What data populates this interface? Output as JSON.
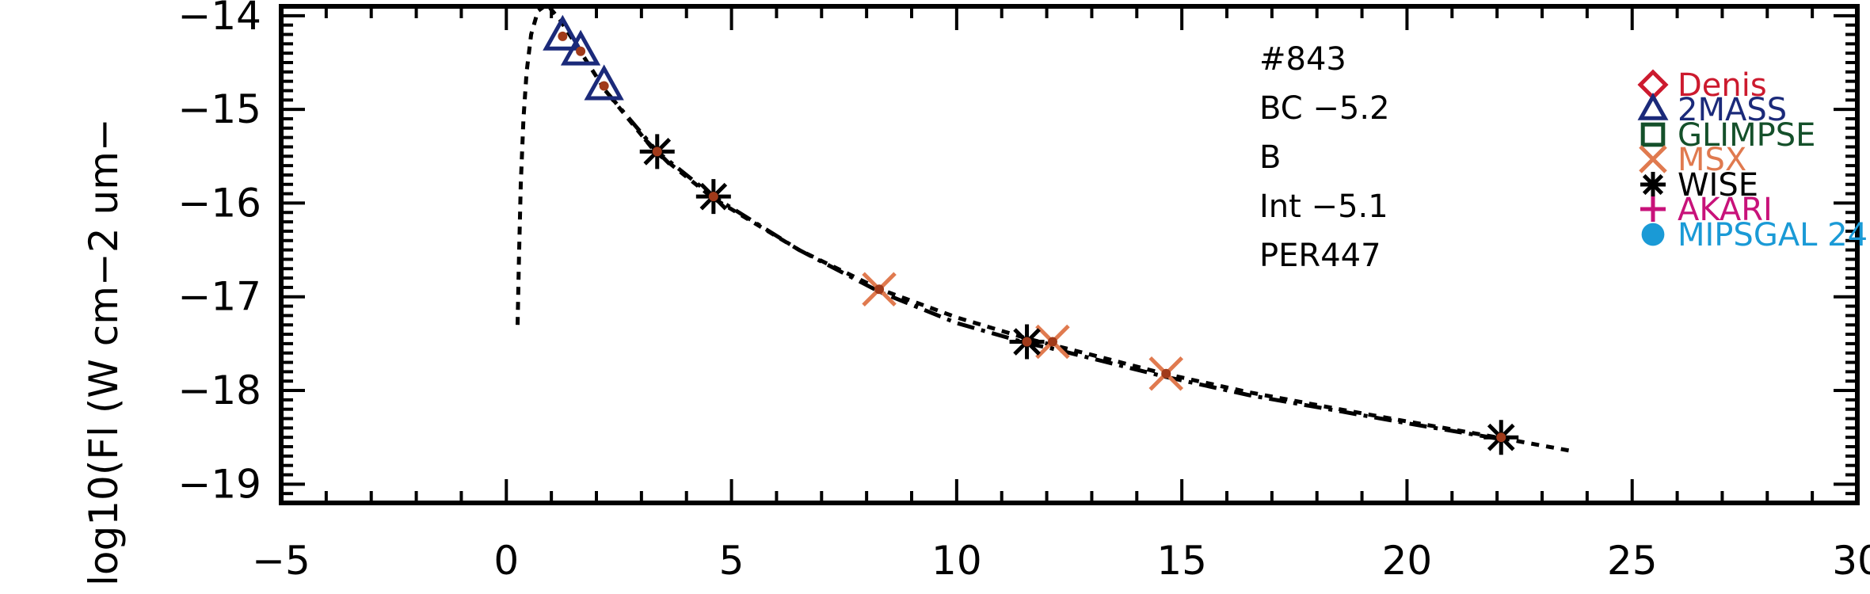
{
  "chart_data": {
    "type": "scatter",
    "title": "",
    "xlabel": "",
    "ylabel": "log10(Fl (W cm−2 um−",
    "xlim": [
      -5,
      30
    ],
    "ylim": [
      -19.2,
      -13.9
    ],
    "x_ticks": [
      -5,
      0,
      5,
      10,
      15,
      20,
      25,
      30
    ],
    "x_tick_labels": [
      "−5",
      "0",
      "5",
      "10",
      "15",
      "20",
      "25",
      "30"
    ],
    "y_ticks": [
      -19,
      -18,
      -17,
      -16,
      -15,
      -14
    ],
    "y_tick_labels": [
      "−19",
      "−18",
      "−17",
      "−16",
      "−15",
      "−14"
    ],
    "annotations": [
      "#843",
      "BC  −5.2",
      "B",
      "Int  −5.1",
      "PER447"
    ],
    "legend": [
      {
        "name": "Denis",
        "marker": "diamond",
        "color": "#cc1a2e"
      },
      {
        "name": "2MASS",
        "marker": "triangle",
        "color": "#1b2a7a"
      },
      {
        "name": "GLIMPSE",
        "marker": "square",
        "color": "#14502a"
      },
      {
        "name": "MSX",
        "marker": "x",
        "color": "#e07a4f"
      },
      {
        "name": "WISE",
        "marker": "asterisk",
        "color": "#000000"
      },
      {
        "name": "AKARI",
        "marker": "plus",
        "color": "#c8127a"
      },
      {
        "name": "MIPSGAL 24",
        "marker": "circle",
        "color": "#1a9ad6"
      }
    ],
    "series": [
      {
        "name": "2MASS",
        "marker": "triangle",
        "color": "#1b2a7a",
        "x": [
          1.25,
          1.65,
          2.17
        ],
        "y": [
          -14.22,
          -14.38,
          -14.75
        ]
      },
      {
        "name": "MSX",
        "marker": "x",
        "color": "#e07a4f",
        "x": [
          8.28,
          12.13,
          14.65
        ],
        "y": [
          -16.92,
          -17.48,
          -17.82
        ]
      },
      {
        "name": "WISE",
        "marker": "asterisk",
        "color": "#000000",
        "x": [
          3.35,
          4.6,
          11.56,
          22.09
        ],
        "y": [
          -15.45,
          -15.93,
          -17.48,
          -18.5
        ]
      },
      {
        "name": "model",
        "marker": "dot",
        "color": "#a03a1a",
        "x": [
          1.25,
          1.65,
          2.17,
          3.35,
          4.6,
          8.28,
          11.56,
          12.13,
          14.65,
          22.09
        ],
        "y": [
          -14.22,
          -14.38,
          -14.75,
          -15.45,
          -15.93,
          -16.92,
          -17.48,
          -17.48,
          -17.82,
          -18.5
        ]
      }
    ],
    "curves": [
      {
        "style": "dotted",
        "color": "#000000",
        "x": [
          0.25,
          0.28,
          0.32,
          0.38,
          0.45,
          0.55,
          0.7,
          0.9,
          1.2,
          1.6,
          2.2,
          3.3,
          4.6,
          6.5,
          8.3,
          10,
          11.6,
          13,
          14.6,
          16.5,
          18.5,
          20,
          22,
          23.7
        ],
        "y": [
          -17.3,
          -16.6,
          -15.8,
          -15.1,
          -14.6,
          -14.2,
          -13.95,
          -13.88,
          -14.05,
          -14.35,
          -14.8,
          -15.45,
          -15.95,
          -16.5,
          -16.92,
          -17.22,
          -17.45,
          -17.62,
          -17.82,
          -18.02,
          -18.2,
          -18.33,
          -18.5,
          -18.65
        ]
      },
      {
        "style": "dashdot",
        "color": "#000000",
        "x": [
          2.2,
          3.35,
          4.6,
          6.5,
          8.3,
          10,
          11.6,
          12.1,
          14.6,
          16.5,
          18.5,
          20,
          22.1
        ],
        "y": [
          -14.8,
          -15.45,
          -15.93,
          -16.5,
          -16.95,
          -17.28,
          -17.5,
          -17.55,
          -17.85,
          -18.05,
          -18.22,
          -18.35,
          -18.52
        ]
      }
    ]
  }
}
